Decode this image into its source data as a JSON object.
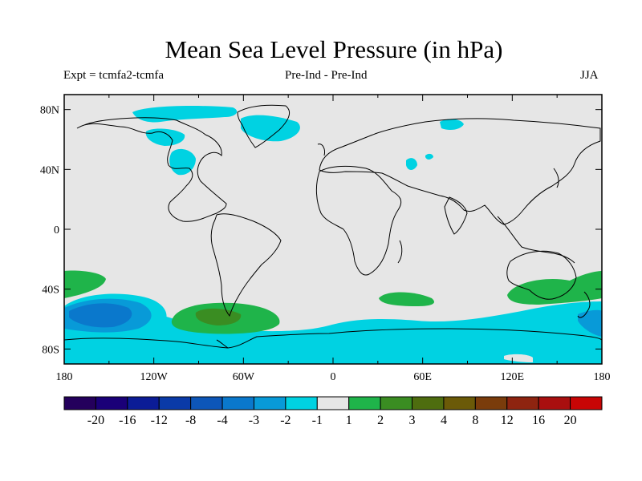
{
  "title": "Mean Sea Level Pressure (in hPa)",
  "expt_label": "Expt = tcmfa2-tcmfa",
  "comparison_label": "Pre-Ind - Pre-Ind",
  "season_label": "JJA",
  "lat_labels": [
    "80N",
    "40N",
    "0",
    "40S",
    "80S"
  ],
  "lon_labels": [
    "180",
    "120W",
    "60W",
    "0",
    "60E",
    "120E",
    "180"
  ],
  "colorbar": {
    "colors": [
      "#24005c",
      "#1a0078",
      "#0b1c96",
      "#0a3aa8",
      "#0d56b8",
      "#0a78cc",
      "#089ad8",
      "#00d2e2",
      "#e6e6e6",
      "#1fb44a",
      "#3a8d22",
      "#4e6d0f",
      "#6b5a08",
      "#7a3c0b",
      "#8e2410",
      "#a90f0f",
      "#c80505"
    ],
    "tick_labels": [
      "-20",
      "-16",
      "-12",
      "-8",
      "-4",
      "-3",
      "-2",
      "-1",
      "1",
      "2",
      "3",
      "4",
      "8",
      "12",
      "16",
      "20"
    ]
  },
  "chart_data": {
    "type": "filled-contour-map",
    "variable": "Mean Sea Level Pressure difference",
    "units": "hPa",
    "projection": "cylindrical-equidistant",
    "lat_range": [
      -90,
      90
    ],
    "lon_range": [
      -180,
      180
    ],
    "levels": [
      -20,
      -16,
      -12,
      -8,
      -4,
      -3,
      -2,
      -1,
      1,
      2,
      3,
      4,
      8,
      12,
      16,
      20
    ],
    "features": [
      {
        "region": "Southern Ocean ring",
        "lat": -72,
        "lon": 0,
        "value_range": [
          -2,
          -1
        ]
      },
      {
        "region": "South Pacific low",
        "lat": -58,
        "lon": -155,
        "value_range": [
          -4,
          -3
        ]
      },
      {
        "region": "South Atlantic high",
        "lat": -60,
        "lon": -70,
        "value_range": [
          2,
          3
        ]
      },
      {
        "region": "South Indian high",
        "lat": -50,
        "lon": 45,
        "value_range": [
          1,
          2
        ]
      },
      {
        "region": "Australia high",
        "lat": -42,
        "lon": 140,
        "value_range": [
          1,
          2
        ]
      },
      {
        "region": "SE Pacific high",
        "lat": -38,
        "lon": -170,
        "value_range": [
          1,
          2
        ]
      },
      {
        "region": "Greenland / Arctic",
        "lat": 75,
        "lon": -40,
        "value_range": [
          -2,
          -1
        ]
      },
      {
        "region": "Hudson Bay",
        "lat": 55,
        "lon": -85,
        "value_range": [
          -2,
          -1
        ]
      }
    ]
  }
}
